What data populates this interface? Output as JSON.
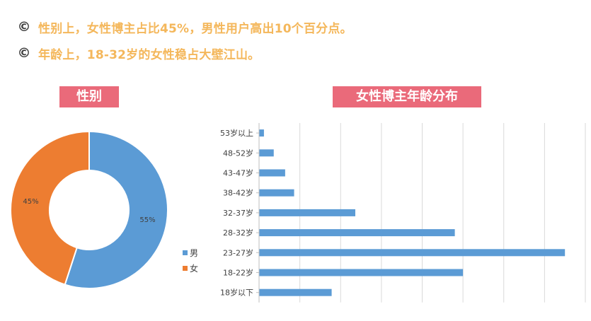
{
  "bullets": [
    {
      "symbol": "©",
      "text": "性别上，女性博主占比45%，男性用户高出10个百分点。"
    },
    {
      "symbol": "©",
      "text": "年龄上，18-32岁的女性稳占大壁江山。"
    }
  ],
  "colors": {
    "male": "#5b9bd5",
    "female": "#ed7d31",
    "title_badge": "#ea6a7a",
    "bullet_text": "#f4b75b",
    "bar": "#5b9bd5",
    "grid": "#d9d9d9"
  },
  "chart_data": [
    {
      "type": "pie",
      "subtype": "donut",
      "title": "性别",
      "categories": [
        "男",
        "女"
      ],
      "values": [
        55,
        45
      ],
      "labels": [
        "55%",
        "45%"
      ],
      "legend": "right",
      "colors": [
        "#5b9bd5",
        "#ed7d31"
      ]
    },
    {
      "type": "bar",
      "orientation": "horizontal",
      "title": "女性博主年龄分布",
      "categories": [
        "53岁以上",
        "48-52岁",
        "43-47岁",
        "38-42岁",
        "32-37岁",
        "28-32岁",
        "23-27岁",
        "18-22岁",
        "18岁以下"
      ],
      "values": [
        0.6,
        1.8,
        3.2,
        4.3,
        11.8,
        24.0,
        37.5,
        25.0,
        8.9
      ],
      "xlim": [
        0,
        40
      ],
      "grid": true,
      "tick_labels_shown": false
    }
  ]
}
